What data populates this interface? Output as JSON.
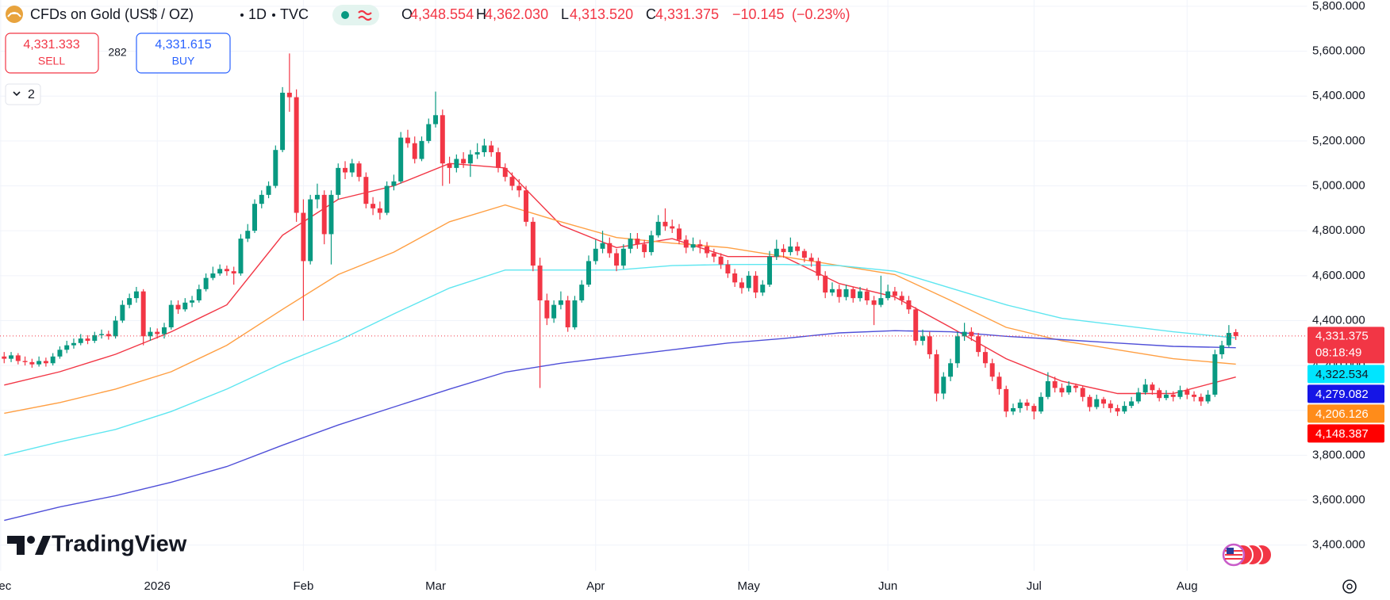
{
  "chart_data": {
    "type": "candlestick",
    "title": "CFDs on Gold (US$ / OZ)",
    "interval": "1D",
    "source": "TVC",
    "ohlc_legend": [
      {
        "key": "O",
        "text": "4,348.554"
      },
      {
        "key": "H",
        "text": "4,362.030"
      },
      {
        "key": "L",
        "text": "4,313.520"
      },
      {
        "key": "C",
        "text": "4,331.375"
      }
    ],
    "change": "−10.145",
    "change_percent": "(−0.23%)",
    "quote": {
      "sell": "4,331.333",
      "sell_label": "SELL",
      "spread": "282",
      "buy": "4,331.615",
      "buy_label": "BUY"
    },
    "indicators_collapsed": "2",
    "brand": "TradingView",
    "last_price_label": "4,331.375",
    "countdown": "08:18:49",
    "up_color": "#089981",
    "down_color": "#f23645",
    "grid": true,
    "xlim": [
      -0.6,
      187.3
    ],
    "xticks": [
      {
        "value": -0.5,
        "label": "Dec"
      },
      {
        "value": 22,
        "label": "2026"
      },
      {
        "value": 43,
        "label": "Feb"
      },
      {
        "value": 62,
        "label": "Mar"
      },
      {
        "value": 85,
        "label": "Apr"
      },
      {
        "value": 107,
        "label": "May"
      },
      {
        "value": 127,
        "label": "Jun"
      },
      {
        "value": 148,
        "label": "Jul"
      },
      {
        "value": 170,
        "label": "Aug"
      }
    ],
    "ylim": [
      3286,
      5828
    ],
    "yticks": [
      {
        "value": 3400,
        "label": "3,400.000"
      },
      {
        "value": 3600,
        "label": "3,600.000"
      },
      {
        "value": 3800,
        "label": "3,800.000"
      },
      {
        "value": 4000,
        "label": "4,000.000"
      },
      {
        "value": 4200,
        "label": "4,200.000"
      },
      {
        "value": 4400,
        "label": "4,400.000"
      },
      {
        "value": 4600,
        "label": "4,600.000"
      },
      {
        "value": 4800,
        "label": "4,800.000"
      },
      {
        "value": 5000,
        "label": "5,000.000"
      },
      {
        "value": 5200,
        "label": "5,200.000"
      },
      {
        "value": 5400,
        "label": "5,400.000"
      },
      {
        "value": 5600,
        "label": "5,600.000"
      },
      {
        "value": 5800,
        "label": "5,800.000"
      }
    ],
    "ohlc": [
      [
        4240,
        4260,
        4210,
        4230
      ],
      [
        4230,
        4260,
        4215,
        4245
      ],
      [
        4245,
        4255,
        4205,
        4220
      ],
      [
        4220,
        4240,
        4200,
        4215
      ],
      [
        4215,
        4230,
        4190,
        4205
      ],
      [
        4205,
        4240,
        4195,
        4220
      ],
      [
        4220,
        4235,
        4195,
        4210
      ],
      [
        4210,
        4255,
        4200,
        4240
      ],
      [
        4240,
        4285,
        4230,
        4270
      ],
      [
        4270,
        4310,
        4255,
        4290
      ],
      [
        4290,
        4320,
        4275,
        4300
      ],
      [
        4300,
        4340,
        4290,
        4320
      ],
      [
        4320,
        4335,
        4295,
        4310
      ],
      [
        4310,
        4350,
        4300,
        4335
      ],
      [
        4335,
        4360,
        4320,
        4340
      ],
      [
        4340,
        4355,
        4315,
        4330
      ],
      [
        4330,
        4420,
        4320,
        4400
      ],
      [
        4400,
        4490,
        4390,
        4470
      ],
      [
        4470,
        4520,
        4455,
        4500
      ],
      [
        4500,
        4550,
        4480,
        4530
      ],
      [
        4530,
        4540,
        4290,
        4330
      ],
      [
        4330,
        4370,
        4310,
        4350
      ],
      [
        4350,
        4365,
        4320,
        4340
      ],
      [
        4340,
        4390,
        4320,
        4370
      ],
      [
        4370,
        4490,
        4360,
        4470
      ],
      [
        4470,
        4490,
        4430,
        4450
      ],
      [
        4450,
        4500,
        4440,
        4480
      ],
      [
        4480,
        4510,
        4460,
        4490
      ],
      [
        4490,
        4560,
        4480,
        4540
      ],
      [
        4540,
        4610,
        4530,
        4590
      ],
      [
        4590,
        4640,
        4580,
        4610
      ],
      [
        4610,
        4650,
        4600,
        4630
      ],
      [
        4630,
        4645,
        4600,
        4620
      ],
      [
        4620,
        4640,
        4560,
        4610
      ],
      [
        4610,
        4785,
        4600,
        4765
      ],
      [
        4765,
        4830,
        4750,
        4800
      ],
      [
        4800,
        4940,
        4790,
        4920
      ],
      [
        4920,
        4980,
        4900,
        4960
      ],
      [
        4960,
        5020,
        4945,
        5000
      ],
      [
        5000,
        5180,
        4990,
        5160
      ],
      [
        5160,
        5440,
        5150,
        5415
      ],
      [
        5415,
        5590,
        5330,
        5395
      ],
      [
        5395,
        5430,
        4840,
        4880
      ],
      [
        4880,
        4940,
        4400,
        4665
      ],
      [
        4665,
        4960,
        4650,
        4940
      ],
      [
        4940,
        5010,
        4900,
        4960
      ],
      [
        4960,
        4980,
        4740,
        4785
      ],
      [
        4785,
        4980,
        4650,
        4960
      ],
      [
        4960,
        5100,
        4940,
        5080
      ],
      [
        5080,
        5110,
        5030,
        5060
      ],
      [
        5060,
        5120,
        5040,
        5100
      ],
      [
        5100,
        5110,
        5020,
        5040
      ],
      [
        5040,
        5060,
        4900,
        4920
      ],
      [
        4920,
        4950,
        4870,
        4900
      ],
      [
        4900,
        4930,
        4850,
        4880
      ],
      [
        4880,
        5020,
        4870,
        5000
      ],
      [
        5000,
        5050,
        4980,
        5020
      ],
      [
        5020,
        5240,
        5010,
        5215
      ],
      [
        5215,
        5250,
        5170,
        5190
      ],
      [
        5190,
        5220,
        5100,
        5120
      ],
      [
        5120,
        5220,
        5110,
        5200
      ],
      [
        5200,
        5300,
        5190,
        5275
      ],
      [
        5275,
        5420,
        5260,
        5315
      ],
      [
        5315,
        5340,
        5000,
        5100
      ],
      [
        5100,
        5130,
        5010,
        5080
      ],
      [
        5080,
        5140,
        5060,
        5120
      ],
      [
        5120,
        5150,
        5080,
        5100
      ],
      [
        5100,
        5160,
        5040,
        5140
      ],
      [
        5140,
        5190,
        5120,
        5150
      ],
      [
        5150,
        5210,
        5130,
        5180
      ],
      [
        5180,
        5200,
        5130,
        5150
      ],
      [
        5150,
        5170,
        5060,
        5080
      ],
      [
        5080,
        5100,
        5020,
        5040
      ],
      [
        5040,
        5060,
        4980,
        5000
      ],
      [
        5000,
        5030,
        4950,
        4980
      ],
      [
        4980,
        5000,
        4820,
        4840
      ],
      [
        4840,
        4860,
        4620,
        4645
      ],
      [
        4645,
        4680,
        4100,
        4490
      ],
      [
        4490,
        4520,
        4380,
        4410
      ],
      [
        4410,
        4490,
        4390,
        4470
      ],
      [
        4470,
        4530,
        4450,
        4490
      ],
      [
        4490,
        4510,
        4350,
        4370
      ],
      [
        4370,
        4510,
        4360,
        4490
      ],
      [
        4490,
        4580,
        4480,
        4560
      ],
      [
        4560,
        4690,
        4550,
        4665
      ],
      [
        4665,
        4760,
        4650,
        4720
      ],
      [
        4720,
        4800,
        4700,
        4745
      ],
      [
        4745,
        4770,
        4680,
        4700
      ],
      [
        4700,
        4720,
        4620,
        4645
      ],
      [
        4645,
        4740,
        4630,
        4720
      ],
      [
        4720,
        4790,
        4700,
        4765
      ],
      [
        4765,
        4790,
        4720,
        4740
      ],
      [
        4740,
        4760,
        4680,
        4705
      ],
      [
        4705,
        4800,
        4690,
        4780
      ],
      [
        4780,
        4870,
        4770,
        4840
      ],
      [
        4840,
        4900,
        4800,
        4820
      ],
      [
        4820,
        4850,
        4790,
        4810
      ],
      [
        4810,
        4830,
        4740,
        4760
      ],
      [
        4760,
        4780,
        4700,
        4725
      ],
      [
        4725,
        4770,
        4710,
        4740
      ],
      [
        4740,
        4760,
        4700,
        4730
      ],
      [
        4730,
        4750,
        4680,
        4700
      ],
      [
        4700,
        4720,
        4660,
        4685
      ],
      [
        4685,
        4700,
        4630,
        4650
      ],
      [
        4650,
        4670,
        4590,
        4610
      ],
      [
        4610,
        4630,
        4550,
        4570
      ],
      [
        4570,
        4590,
        4520,
        4545
      ],
      [
        4545,
        4620,
        4530,
        4600
      ],
      [
        4600,
        4620,
        4500,
        4525
      ],
      [
        4525,
        4580,
        4510,
        4560
      ],
      [
        4560,
        4710,
        4550,
        4685
      ],
      [
        4685,
        4760,
        4670,
        4720
      ],
      [
        4720,
        4740,
        4680,
        4705
      ],
      [
        4705,
        4770,
        4690,
        4730
      ],
      [
        4730,
        4750,
        4690,
        4710
      ],
      [
        4710,
        4720,
        4660,
        4680
      ],
      [
        4680,
        4700,
        4640,
        4665
      ],
      [
        4665,
        4680,
        4580,
        4600
      ],
      [
        4600,
        4620,
        4500,
        4525
      ],
      [
        4525,
        4570,
        4510,
        4540
      ],
      [
        4540,
        4560,
        4480,
        4505
      ],
      [
        4505,
        4560,
        4490,
        4540
      ],
      [
        4540,
        4550,
        4480,
        4500
      ],
      [
        4500,
        4550,
        4485,
        4530
      ],
      [
        4530,
        4545,
        4470,
        4490
      ],
      [
        4490,
        4510,
        4380,
        4470
      ],
      [
        4470,
        4600,
        4460,
        4500
      ],
      [
        4500,
        4560,
        4490,
        4530
      ],
      [
        4530,
        4550,
        4490,
        4510
      ],
      [
        4510,
        4530,
        4470,
        4490
      ],
      [
        4490,
        4510,
        4430,
        4450
      ],
      [
        4450,
        4460,
        4290,
        4310
      ],
      [
        4310,
        4360,
        4290,
        4330
      ],
      [
        4330,
        4350,
        4230,
        4250
      ],
      [
        4250,
        4270,
        4040,
        4075
      ],
      [
        4075,
        4170,
        4050,
        4150
      ],
      [
        4150,
        4230,
        4130,
        4210
      ],
      [
        4210,
        4350,
        4190,
        4330
      ],
      [
        4330,
        4390,
        4310,
        4350
      ],
      [
        4350,
        4370,
        4310,
        4330
      ],
      [
        4330,
        4345,
        4240,
        4260
      ],
      [
        4260,
        4280,
        4190,
        4210
      ],
      [
        4210,
        4230,
        4130,
        4150
      ],
      [
        4150,
        4170,
        4070,
        4095
      ],
      [
        4095,
        4110,
        3970,
        3995
      ],
      [
        3995,
        4030,
        3980,
        4010
      ],
      [
        4010,
        4050,
        3990,
        4035
      ],
      [
        4035,
        4050,
        4000,
        4020
      ],
      [
        4020,
        4030,
        3960,
        3995
      ],
      [
        3995,
        4080,
        3985,
        4060
      ],
      [
        4060,
        4170,
        4050,
        4130
      ],
      [
        4130,
        4150,
        4080,
        4100
      ],
      [
        4100,
        4120,
        4060,
        4080
      ],
      [
        4080,
        4130,
        4070,
        4110
      ],
      [
        4110,
        4120,
        4080,
        4100
      ],
      [
        4100,
        4110,
        4040,
        4060
      ],
      [
        4060,
        4070,
        3995,
        4015
      ],
      [
        4015,
        4070,
        4005,
        4050
      ],
      [
        4050,
        4060,
        4010,
        4030
      ],
      [
        4030,
        4045,
        3990,
        4010
      ],
      [
        4010,
        4025,
        3975,
        3995
      ],
      [
        3995,
        4040,
        3985,
        4020
      ],
      [
        4020,
        4060,
        4010,
        4040
      ],
      [
        4040,
        4100,
        4030,
        4080
      ],
      [
        4080,
        4140,
        4070,
        4115
      ],
      [
        4115,
        4125,
        4070,
        4090
      ],
      [
        4090,
        4100,
        4040,
        4055
      ],
      [
        4055,
        4090,
        4045,
        4070
      ],
      [
        4070,
        4085,
        4040,
        4060
      ],
      [
        4060,
        4110,
        4050,
        4090
      ],
      [
        4090,
        4100,
        4050,
        4070
      ],
      [
        4070,
        4085,
        4040,
        4060
      ],
      [
        4060,
        4075,
        4020,
        4040
      ],
      [
        4040,
        4090,
        4030,
        4070
      ],
      [
        4070,
        4270,
        4060,
        4250
      ],
      [
        4250,
        4310,
        4230,
        4290
      ],
      [
        4290,
        4380,
        4280,
        4345
      ],
      [
        4348.554,
        4362.03,
        4313.52,
        4331.375
      ]
    ],
    "series": [
      {
        "color": "#f23645",
        "tag_color": "#ff0000",
        "tag_text_color": "#ffffff",
        "last_label": "4,148.387",
        "x": [
          0,
          8,
          16,
          24,
          32,
          40,
          48,
          56,
          64,
          72,
          80,
          88,
          96,
          104,
          112,
          120,
          128,
          136,
          144,
          152,
          160,
          168,
          177
        ],
        "values": [
          4113,
          4172,
          4250,
          4350,
          4470,
          4780,
          4940,
          5000,
          5100,
          5080,
          4825,
          4725,
          4765,
          4685,
          4685,
          4565,
          4505,
          4370,
          4230,
          4130,
          4075,
          4075,
          4148.387
        ]
      },
      {
        "color": "#ff9f43",
        "tag_color": "#ff8c1a",
        "tag_text_color": "#ffffff",
        "last_label": "4,206.126",
        "x": [
          0,
          8,
          16,
          24,
          32,
          40,
          48,
          56,
          64,
          72,
          80,
          88,
          96,
          104,
          112,
          120,
          128,
          136,
          144,
          152,
          160,
          168,
          177
        ],
        "values": [
          3987,
          4035,
          4095,
          4172,
          4290,
          4450,
          4605,
          4705,
          4840,
          4915,
          4840,
          4770,
          4745,
          4725,
          4685,
          4645,
          4605,
          4490,
          4370,
          4310,
          4270,
          4230,
          4206.126
        ]
      },
      {
        "color": "#5ee6f0",
        "tag_color": "#00e5ff",
        "tag_text_color": "#131722",
        "last_label": "4,322.534",
        "x": [
          0,
          8,
          16,
          24,
          32,
          40,
          48,
          56,
          64,
          72,
          80,
          88,
          96,
          104,
          112,
          120,
          128,
          136,
          144,
          152,
          160,
          168,
          177
        ],
        "values": [
          3800,
          3860,
          3915,
          3995,
          4095,
          4210,
          4310,
          4430,
          4545,
          4625,
          4625,
          4625,
          4645,
          4650,
          4650,
          4645,
          4620,
          4545,
          4470,
          4410,
          4380,
          4350,
          4322.534
        ]
      },
      {
        "color": "#4f4fd8",
        "tag_color": "#1515e6",
        "tag_text_color": "#ffffff",
        "last_label": "4,279.082",
        "x": [
          0,
          8,
          16,
          24,
          32,
          40,
          48,
          56,
          64,
          72,
          80,
          88,
          96,
          104,
          112,
          120,
          128,
          136,
          144,
          152,
          160,
          168,
          177
        ],
        "values": [
          3510,
          3570,
          3620,
          3680,
          3750,
          3845,
          3935,
          4015,
          4095,
          4170,
          4210,
          4240,
          4270,
          4300,
          4320,
          4345,
          4355,
          4350,
          4330,
          4315,
          4300,
          4285,
          4279.082
        ]
      }
    ]
  }
}
